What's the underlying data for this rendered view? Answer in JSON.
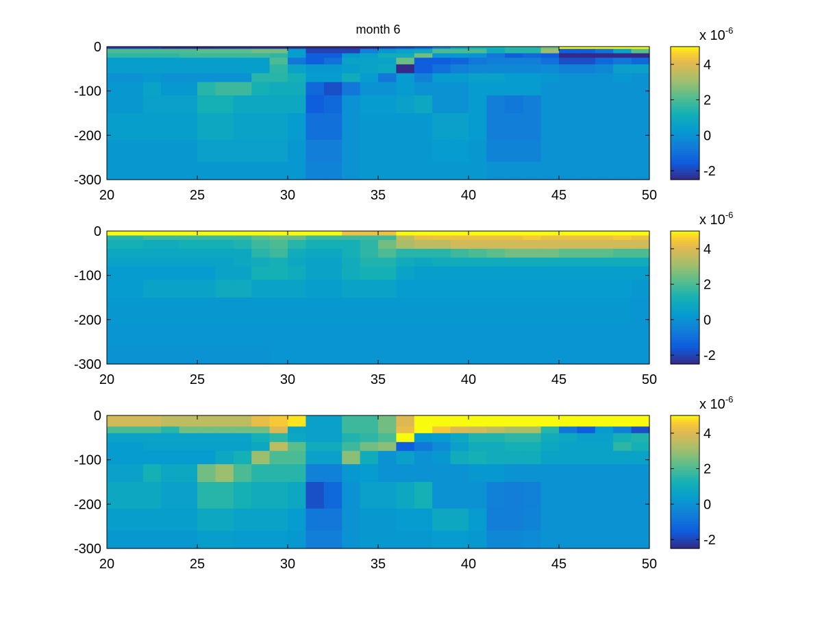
{
  "chart_data": [
    {
      "type": "heatmap",
      "title": "month 6",
      "xlim": [
        20,
        50
      ],
      "ylim": [
        -300,
        0
      ],
      "xticks": [
        20,
        25,
        30,
        35,
        40,
        45,
        50
      ],
      "yticks": [
        0,
        -100,
        -200,
        -300
      ],
      "x_edges": [
        20,
        21,
        22,
        23,
        24,
        25,
        26,
        27,
        28,
        29,
        30,
        31,
        32,
        33,
        34,
        35,
        36,
        37,
        38,
        39,
        40,
        41,
        42,
        43,
        44,
        45,
        46,
        47,
        48,
        49,
        50
      ],
      "y_edges": [
        0,
        -5,
        -15,
        -25,
        -40,
        -60,
        -80,
        -110,
        -150,
        -210,
        -260,
        -300
      ],
      "colorbar": {
        "clim": [
          -2.5,
          5
        ],
        "ticks": [
          -2,
          0,
          2,
          4
        ],
        "multiplier": "x 10",
        "exponent": "-6"
      },
      "values": [
        [
          -2.2,
          -2.2,
          -2.2,
          -2.5,
          -2.5,
          -2.5,
          -2.4,
          -2.4,
          -2.4,
          -2.4,
          -2.3,
          -2.6,
          -2.6,
          -2.6,
          -2.6,
          -2.0,
          -1.8,
          -1.5,
          -0.5,
          0.5,
          1.2,
          1.2,
          1.5,
          1.5,
          2.5,
          5.0,
          5.0,
          5.0,
          5.0,
          5.0
        ],
        [
          2.0,
          2.0,
          2.0,
          2.0,
          2.0,
          2.2,
          2.2,
          2.2,
          2.5,
          2.5,
          0.4,
          -2.0,
          -2.0,
          -2.0,
          -0.5,
          0.2,
          0.5,
          0.8,
          2.0,
          2.0,
          2.0,
          1.0,
          1.5,
          1.5,
          3.0,
          -1.5,
          -1.5,
          -1.0,
          0.5,
          2.2
        ],
        [
          1.6,
          1.6,
          1.6,
          1.6,
          1.8,
          1.8,
          1.8,
          1.8,
          1.8,
          1.6,
          0.4,
          -1.5,
          -1.5,
          0.2,
          0.5,
          1.0,
          1.0,
          2.5,
          0.2,
          0.2,
          0.0,
          -0.8,
          -1.5,
          -1.2,
          -1.5,
          -2.6,
          -2.6,
          -2.6,
          -2.6,
          -2.6
        ],
        [
          0.4,
          0.4,
          0.4,
          0.4,
          0.4,
          0.4,
          0.4,
          0.4,
          0.4,
          2.0,
          -0.8,
          -1.5,
          -1.0,
          0.6,
          0.6,
          0.6,
          2.4,
          -1.5,
          -1.5,
          -1.3,
          -0.8,
          -0.6,
          -0.6,
          -0.6,
          -1.0,
          -1.8,
          -1.8,
          -1.2,
          -0.8,
          -1.2
        ],
        [
          0.4,
          0.4,
          0.4,
          0.4,
          0.4,
          0.4,
          0.4,
          0.4,
          0.4,
          1.6,
          0.6,
          0.2,
          0.2,
          0.4,
          0.6,
          0.8,
          -2.5,
          -1.5,
          -1.0,
          -0.5,
          -0.3,
          -0.3,
          -0.3,
          -0.3,
          -0.2,
          -0.5,
          -0.5,
          -0.3,
          0.5,
          0.5
        ],
        [
          0.0,
          0.0,
          0.2,
          0.0,
          0.0,
          0.0,
          0.0,
          0.0,
          1.5,
          1.5,
          1.2,
          0.3,
          0.3,
          1.0,
          0.3,
          -0.8,
          0.3,
          -0.5,
          0.3,
          0.3,
          0.5,
          0.5,
          0.3,
          0.3,
          0.2,
          0.0,
          0.0,
          0.0,
          0.2,
          0.0
        ],
        [
          0.2,
          0.2,
          0.6,
          0.2,
          0.2,
          1.5,
          1.8,
          1.8,
          1.2,
          1.0,
          1.0,
          -1.2,
          -1.8,
          -0.8,
          0.0,
          0.0,
          0.3,
          0.0,
          0.0,
          0.0,
          0.3,
          0.3,
          0.3,
          0.3,
          0.0,
          0.0,
          0.0,
          0.0,
          0.0,
          0.0
        ],
        [
          0.2,
          0.2,
          0.5,
          0.5,
          0.5,
          1.2,
          1.2,
          0.8,
          0.8,
          0.8,
          0.8,
          -1.5,
          -1.2,
          0.0,
          0.3,
          0.3,
          0.5,
          0.8,
          0.0,
          0.0,
          0.3,
          -0.6,
          -0.8,
          -0.6,
          0.0,
          0.0,
          0.0,
          0.0,
          0.0,
          0.0
        ],
        [
          0.4,
          0.4,
          0.4,
          0.4,
          0.4,
          0.8,
          0.8,
          0.6,
          0.6,
          0.6,
          0.3,
          -1.0,
          -1.0,
          0.0,
          0.2,
          0.2,
          0.2,
          0.2,
          0.5,
          0.5,
          0.3,
          -0.6,
          -0.6,
          -0.6,
          0.0,
          0.0,
          0.0,
          0.0,
          0.0,
          0.0
        ],
        [
          0.2,
          0.2,
          0.2,
          0.2,
          0.2,
          0.5,
          0.5,
          0.5,
          0.5,
          0.5,
          0.2,
          -0.6,
          -0.6,
          0.0,
          0.2,
          0.2,
          0.2,
          0.2,
          0.3,
          0.3,
          0.2,
          -0.4,
          -0.4,
          -0.4,
          0.0,
          0.0,
          0.0,
          0.0,
          0.0,
          0.0
        ],
        [
          0.2,
          0.2,
          0.2,
          0.2,
          0.2,
          0.2,
          0.2,
          0.2,
          0.2,
          0.2,
          0.2,
          -0.4,
          -0.4,
          0.0,
          0.2,
          0.2,
          0.2,
          0.2,
          0.2,
          0.2,
          0.2,
          0.0,
          0.0,
          0.0,
          0.0,
          0.0,
          0.0,
          0.0,
          0.0,
          0.0
        ]
      ]
    },
    {
      "type": "heatmap",
      "title": "",
      "xlim": [
        20,
        50
      ],
      "ylim": [
        -300,
        0
      ],
      "xticks": [
        20,
        25,
        30,
        35,
        40,
        45,
        50
      ],
      "yticks": [
        0,
        -100,
        -200,
        -300
      ],
      "x_edges": [
        20,
        21,
        22,
        23,
        24,
        25,
        26,
        27,
        28,
        29,
        30,
        31,
        32,
        33,
        34,
        35,
        36,
        37,
        38,
        39,
        40,
        41,
        42,
        43,
        44,
        45,
        46,
        47,
        48,
        49,
        50
      ],
      "y_edges": [
        0,
        -10,
        -20,
        -40,
        -60,
        -80,
        -110,
        -150,
        -210,
        -260,
        -300
      ],
      "colorbar": {
        "clim": [
          -2.5,
          5
        ],
        "ticks": [
          -2,
          0,
          2,
          4
        ],
        "multiplier": "x 10",
        "exponent": "-6"
      },
      "values": [
        [
          5.0,
          5.0,
          5.0,
          5.0,
          5.0,
          5.0,
          5.0,
          5.0,
          5.0,
          5.0,
          5.0,
          5.0,
          5.0,
          4.3,
          4.3,
          4.3,
          5.0,
          5.0,
          5.0,
          5.0,
          5.0,
          5.0,
          5.0,
          5.0,
          5.0,
          5.0,
          5.0,
          5.0,
          5.0,
          5.0
        ],
        [
          1.5,
          1.5,
          1.8,
          1.8,
          1.8,
          1.8,
          1.8,
          1.8,
          2.2,
          2.4,
          2.4,
          1.8,
          1.8,
          1.8,
          1.8,
          1.8,
          3.5,
          4.2,
          4.3,
          4.3,
          4.3,
          4.3,
          4.3,
          4.5,
          4.3,
          4.3,
          4.3,
          4.3,
          4.5,
          4.3
        ],
        [
          1.2,
          1.2,
          1.0,
          1.0,
          1.2,
          1.2,
          1.2,
          1.4,
          1.8,
          2.0,
          1.5,
          1.2,
          1.2,
          1.2,
          1.6,
          2.5,
          3.2,
          3.5,
          3.5,
          3.8,
          3.8,
          3.8,
          3.8,
          3.8,
          3.8,
          3.8,
          3.8,
          3.8,
          3.8,
          3.8
        ],
        [
          0.8,
          0.8,
          0.8,
          0.8,
          0.8,
          0.8,
          0.8,
          0.8,
          1.5,
          1.8,
          1.0,
          0.8,
          0.8,
          1.2,
          1.6,
          2.0,
          1.5,
          1.5,
          1.5,
          1.8,
          2.0,
          2.2,
          2.5,
          2.5,
          2.5,
          2.2,
          2.2,
          2.2,
          2.0,
          2.0
        ],
        [
          0.6,
          0.6,
          0.6,
          0.6,
          0.6,
          0.6,
          0.6,
          0.8,
          1.0,
          1.2,
          0.8,
          0.6,
          0.6,
          1.0,
          1.4,
          1.4,
          1.0,
          0.8,
          1.0,
          1.0,
          1.0,
          1.0,
          1.0,
          1.0,
          1.0,
          1.0,
          1.0,
          1.0,
          1.0,
          1.0
        ],
        [
          0.3,
          0.3,
          0.3,
          0.3,
          0.3,
          0.3,
          0.6,
          0.6,
          1.2,
          1.2,
          1.0,
          0.6,
          0.6,
          1.0,
          1.2,
          1.2,
          0.6,
          0.4,
          0.4,
          0.4,
          0.4,
          0.4,
          0.4,
          0.4,
          0.4,
          0.4,
          0.4,
          0.4,
          0.4,
          0.4
        ],
        [
          0.3,
          0.3,
          0.6,
          0.6,
          0.6,
          0.6,
          0.9,
          0.9,
          0.6,
          0.6,
          0.6,
          0.4,
          0.4,
          0.6,
          0.6,
          0.6,
          0.3,
          0.3,
          0.3,
          0.3,
          0.3,
          0.3,
          0.3,
          0.3,
          0.3,
          0.3,
          0.3,
          0.3,
          0.3,
          0.2
        ],
        [
          0.2,
          0.2,
          0.2,
          0.2,
          0.2,
          0.2,
          0.2,
          0.2,
          0.2,
          0.2,
          0.2,
          0.2,
          0.2,
          0.2,
          0.2,
          0.2,
          0.2,
          0.2,
          0.2,
          0.2,
          0.2,
          0.2,
          0.2,
          0.2,
          0.2,
          0.2,
          0.2,
          0.2,
          0.2,
          0.1
        ],
        [
          0.1,
          0.1,
          0.1,
          0.1,
          0.1,
          0.1,
          0.1,
          0.1,
          0.1,
          0.1,
          0.1,
          0.1,
          0.1,
          0.1,
          0.1,
          0.1,
          0.1,
          0.1,
          0.1,
          0.1,
          0.1,
          0.1,
          0.1,
          0.1,
          0.1,
          0.1,
          0.1,
          0.1,
          0.1,
          0.1
        ],
        [
          0.0,
          0.0,
          0.0,
          0.0,
          0.0,
          0.0,
          0.0,
          0.0,
          0.0,
          0.1,
          0.1,
          0.1,
          0.1,
          0.1,
          0.1,
          0.1,
          0.1,
          0.1,
          0.1,
          0.1,
          0.1,
          0.1,
          0.1,
          0.1,
          0.1,
          0.1,
          0.1,
          0.1,
          0.1,
          0.1
        ]
      ]
    },
    {
      "type": "heatmap",
      "title": "",
      "xlim": [
        20,
        50
      ],
      "ylim": [
        -300,
        0
      ],
      "xticks": [
        20,
        25,
        30,
        35,
        40,
        45,
        50
      ],
      "yticks": [
        0,
        -100,
        -200,
        -300
      ],
      "x_edges": [
        20,
        21,
        22,
        23,
        24,
        25,
        26,
        27,
        28,
        29,
        30,
        31,
        32,
        33,
        34,
        35,
        36,
        37,
        38,
        39,
        40,
        41,
        42,
        43,
        44,
        45,
        46,
        47,
        48,
        49,
        50
      ],
      "y_edges": [
        0,
        -25,
        -40,
        -60,
        -80,
        -110,
        -150,
        -210,
        -260,
        -300
      ],
      "colorbar": {
        "clim": [
          -2.5,
          5
        ],
        "ticks": [
          -2,
          0,
          2,
          4
        ],
        "multiplier": "x 10",
        "exponent": "-6"
      },
      "values": [
        [
          3.8,
          3.8,
          3.8,
          3.5,
          3.5,
          3.5,
          3.5,
          3.5,
          4.2,
          4.5,
          4.8,
          0.5,
          0.5,
          1.8,
          1.8,
          2.5,
          4.0,
          5.0,
          5.0,
          5.0,
          5.0,
          5.0,
          5.0,
          5.0,
          5.0,
          5.0,
          5.0,
          5.0,
          5.0,
          5.0
        ],
        [
          2.0,
          2.0,
          2.0,
          1.5,
          2.5,
          2.5,
          2.5,
          2.5,
          2.5,
          4.0,
          0.6,
          0.5,
          0.5,
          1.8,
          1.8,
          2.5,
          4.2,
          5.0,
          4.5,
          4.0,
          3.8,
          3.5,
          3.2,
          3.2,
          1.5,
          -0.8,
          -1.5,
          0.3,
          -0.5,
          -1.8
        ],
        [
          0.6,
          0.6,
          0.6,
          0.6,
          0.6,
          0.6,
          0.6,
          0.6,
          1.2,
          1.6,
          0.8,
          0.5,
          0.5,
          1.4,
          1.6,
          2.0,
          5.0,
          0.2,
          0.3,
          0.8,
          1.4,
          1.4,
          1.6,
          1.6,
          1.0,
          0.8,
          0.5,
          0.5,
          1.2,
          1.4
        ],
        [
          0.3,
          0.3,
          0.5,
          0.5,
          0.5,
          0.5,
          0.5,
          0.5,
          0.8,
          3.5,
          2.2,
          1.0,
          1.0,
          1.8,
          2.5,
          2.8,
          -1.5,
          -0.8,
          -0.2,
          0.5,
          1.0,
          1.0,
          1.2,
          1.2,
          0.8,
          0.6,
          0.6,
          0.6,
          1.6,
          1.2
        ],
        [
          0.3,
          0.3,
          0.3,
          0.3,
          0.3,
          0.3,
          0.8,
          1.2,
          3.0,
          2.0,
          2.0,
          0.5,
          0.5,
          2.8,
          1.0,
          0.0,
          0.5,
          0.0,
          0.2,
          1.0,
          1.2,
          1.0,
          1.0,
          1.0,
          0.6,
          0.6,
          0.6,
          0.6,
          0.6,
          0.6
        ],
        [
          0.5,
          0.5,
          1.2,
          0.8,
          0.8,
          2.5,
          3.0,
          2.0,
          1.5,
          1.5,
          1.5,
          -0.5,
          -0.5,
          0.2,
          0.3,
          0.0,
          0.0,
          0.0,
          0.0,
          0.0,
          0.2,
          0.2,
          0.0,
          0.0,
          0.0,
          0.0,
          0.0,
          0.0,
          0.0,
          0.0
        ],
        [
          0.8,
          0.8,
          0.8,
          0.5,
          0.5,
          1.5,
          1.5,
          1.2,
          1.0,
          1.0,
          0.8,
          -1.8,
          -1.2,
          0.0,
          0.5,
          0.5,
          0.8,
          1.2,
          0.0,
          0.0,
          0.0,
          -0.5,
          -0.6,
          -0.5,
          0.0,
          0.0,
          0.0,
          0.0,
          0.0,
          0.0
        ],
        [
          0.4,
          0.4,
          0.4,
          0.4,
          0.4,
          0.8,
          0.8,
          0.6,
          0.6,
          0.6,
          0.3,
          -0.8,
          -0.8,
          0.0,
          0.2,
          0.2,
          0.3,
          0.3,
          0.8,
          0.8,
          0.3,
          -0.6,
          -0.6,
          -0.4,
          0.0,
          0.0,
          0.0,
          0.0,
          0.0,
          0.0
        ],
        [
          0.2,
          0.2,
          0.2,
          0.2,
          0.2,
          0.4,
          0.4,
          0.3,
          0.3,
          0.3,
          0.2,
          -0.6,
          -0.6,
          0.0,
          0.2,
          0.2,
          0.2,
          0.2,
          0.3,
          0.3,
          0.2,
          -0.3,
          -0.3,
          -0.2,
          0.0,
          0.0,
          0.0,
          0.0,
          0.0,
          0.0
        ]
      ]
    }
  ]
}
